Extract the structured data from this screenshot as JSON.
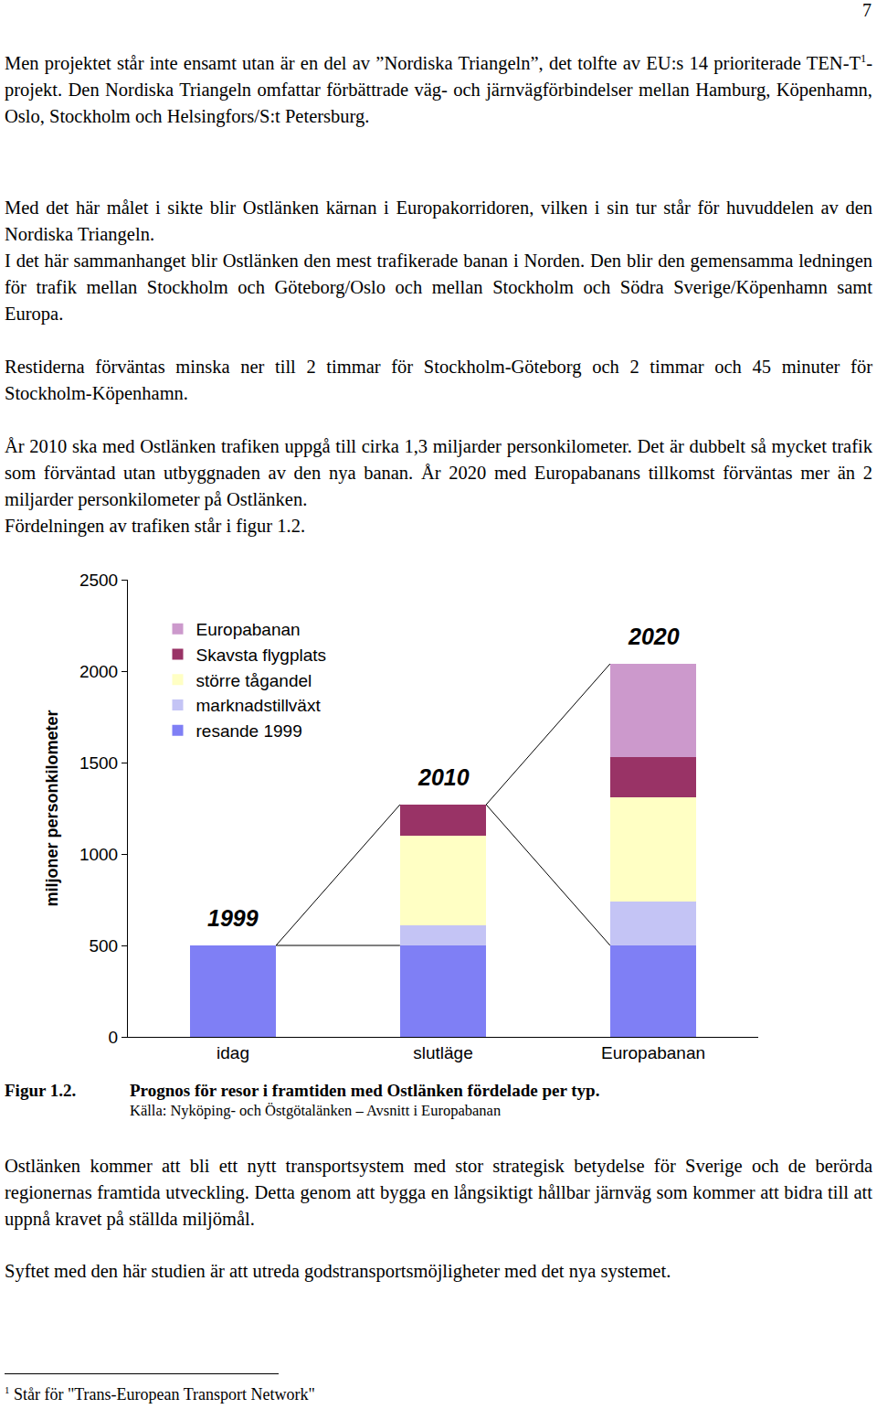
{
  "page_number": "7",
  "paragraphs_before": [
    [
      [
        {
          "text": "Men projektet står inte ensamt utan är en del av ”Nordiska Triangeln”, det tolfte av EU:s 14 prioriterade TEN-T"
        },
        {
          "sup": "1"
        },
        {
          "text": "-projekt. Den Nordiska Triangeln omfattar förbättrade väg- och järnvägförbindelser mellan Hamburg, Köpenhamn, Oslo, Stockholm och Helsingfors/S:t Petersburg."
        }
      ]
    ],
    [
      "Med det här målet i sikte blir Ostlänken kärnan i Europakorridoren, vilken i sin tur står för huvuddelen av den Nordiska Triangeln.",
      "I det här sammanhanget blir Ostlänken den mest trafikerade banan i Norden. Den blir den gemensamma ledningen för trafik mellan Stockholm och Göteborg/Oslo och mellan Stockholm och Södra Sverige/Köpenhamn samt Europa."
    ],
    [
      "Restiderna förväntas minska ner till 2 timmar för Stockholm-Göteborg och 2 timmar och 45 minuter för Stockholm-Köpenhamn."
    ],
    [
      "År 2010 ska med Ostlänken trafiken uppgå till cirka 1,3 miljarder personkilometer. Det är dubbelt så mycket trafik som förväntad utan utbyggnaden av den nya banan. År 2020 med Europabanans tillkomst förväntas mer än 2 miljarder personkilometer på Ostlänken.",
      "Fördelningen av trafiken står i figur 1.2."
    ]
  ],
  "chart_data": {
    "type": "bar",
    "stacked": true,
    "categories": [
      "idag",
      "slutläge",
      "Europabanan"
    ],
    "ylabel": "miljoner personkilometer",
    "ylim": [
      0,
      2500
    ],
    "yticks": [
      0,
      500,
      1000,
      1500,
      2000,
      2500
    ],
    "grid": false,
    "legend": "upper left",
    "series": [
      {
        "name": "resande 1999",
        "color": "#7f7ff5",
        "values": [
          500,
          500,
          500
        ]
      },
      {
        "name": "marknadstillväxt",
        "color": "#c4c4f5",
        "values": [
          0,
          110,
          240
        ]
      },
      {
        "name": "större tågandel",
        "color": "#ffffc4",
        "values": [
          0,
          490,
          570
        ]
      },
      {
        "name": "Skavsta flygplats",
        "color": "#993366",
        "values": [
          0,
          170,
          220
        ]
      },
      {
        "name": "Europabanan",
        "color": "#cc99cc",
        "values": [
          0,
          0,
          510
        ]
      }
    ],
    "annotations": [
      {
        "text": "1999",
        "category": "idag"
      },
      {
        "text": "2010",
        "category": "slutläge"
      },
      {
        "text": "2020",
        "category": "Europabanan"
      }
    ]
  },
  "caption": {
    "label": "Figur 1.2.",
    "title": "Prognos för resor i framtiden med Ostlänken fördelade per typ.",
    "source": "Källa: Nyköping- och Östgötalänken – Avsnitt i Europabanan"
  },
  "paragraphs_after": [
    [
      "Ostlänken kommer att bli ett nytt transportsystem med stor strategisk betydelse för Sverige och de berörda regionernas framtida utveckling. Detta genom att bygga en långsiktigt hållbar järnväg som kommer att bidra till att uppnå kravet på ställda miljömål."
    ],
    [
      "Syftet med den här studien är att utreda godstransportsmöjligheter med det nya systemet."
    ]
  ],
  "footnote": {
    "mark": "1",
    "text": "Står för \"Trans-European Transport Network\""
  }
}
